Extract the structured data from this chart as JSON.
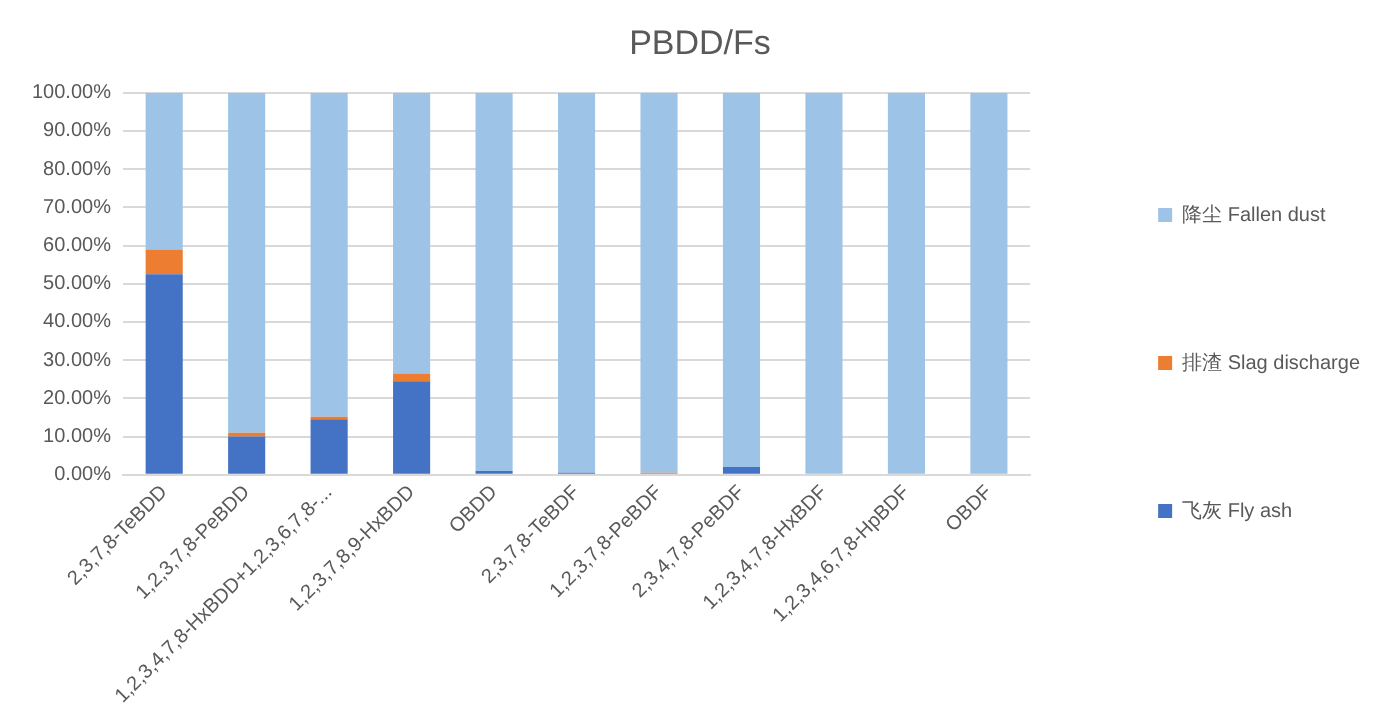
{
  "chart_data": {
    "type": "bar",
    "title": "PBDD/Fs",
    "stacked": true,
    "legend": "right",
    "grid": "y",
    "categories": [
      "2,3,7,8-TeBDD",
      "1,2,3,7,8-PeBDD",
      "1,2,3,4,7,8-HxBDD+1,2,3,6,7,8-...",
      "1,2,3,7,8,9-HxBDD",
      "OBDD",
      "2,3,7,8-TeBDF",
      "1,2,3,7,8-PeBDF",
      "2,3,4,7,8-PeBDF",
      "1,2,3,4,7,8-HxBDF",
      "1,2,3,4,6,7,8-HpBDF",
      "OBDF"
    ],
    "series": [
      {
        "name": "飞灰 Fly ash",
        "color": "#4472c4",
        "values": [
          52.5,
          10,
          14.5,
          24.5,
          1,
          0.5,
          0,
          2,
          0,
          0,
          0
        ]
      },
      {
        "name": "排渣 Slag discharge",
        "color": "#ed7d31",
        "values": [
          6.5,
          1,
          0.7,
          2,
          0,
          0,
          0.5,
          0,
          0,
          0,
          0
        ]
      },
      {
        "name": "降尘 Fallen dust",
        "color": "#9dc3e6",
        "values": [
          41,
          89,
          84.8,
          73.5,
          99,
          99.5,
          99.5,
          98,
          100,
          100,
          100
        ]
      }
    ],
    "ylim": [
      0,
      100
    ],
    "yticks": [
      {
        "value": 0,
        "label": "0.00%"
      },
      {
        "value": 10,
        "label": "10.00%"
      },
      {
        "value": 20,
        "label": "20.00%"
      },
      {
        "value": 30,
        "label": "30.00%"
      },
      {
        "value": 40,
        "label": "40.00%"
      },
      {
        "value": 50,
        "label": "50.00%"
      },
      {
        "value": 60,
        "label": "60.00%"
      },
      {
        "value": 70,
        "label": "70.00%"
      },
      {
        "value": 80,
        "label": "80.00%"
      },
      {
        "value": 90,
        "label": "90.00%"
      },
      {
        "value": 100,
        "label": "100.00%"
      }
    ]
  }
}
